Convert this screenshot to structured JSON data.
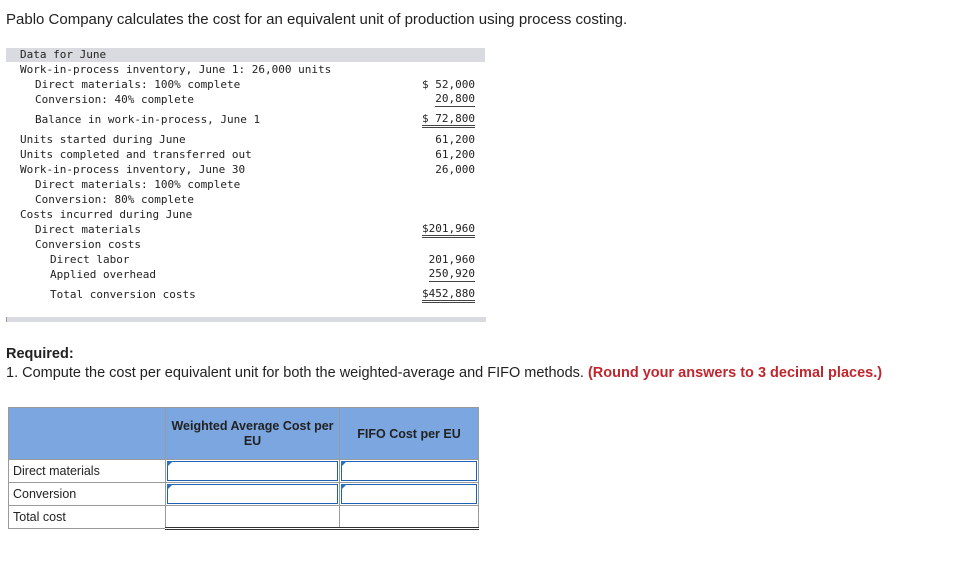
{
  "intro": "Pablo Company calculates the cost for an equivalent unit of production using process costing.",
  "data_table": {
    "header": "Data for June",
    "rows": [
      {
        "label": "Work-in-process inventory, June 1: 26,000 units",
        "value": ""
      },
      {
        "label": "Direct materials: 100% complete",
        "value": "$ 52,000"
      },
      {
        "label": "Conversion: 40% complete",
        "value": "20,800"
      },
      {
        "label": "Balance in work-in-process, June 1",
        "value": "$ 72,800"
      },
      {
        "label": "Units started during June",
        "value": "61,200"
      },
      {
        "label": "Units completed and transferred out",
        "value": "61,200"
      },
      {
        "label": "Work-in-process inventory, June 30",
        "value": "26,000"
      },
      {
        "label": "Direct materials: 100% complete",
        "value": ""
      },
      {
        "label": "Conversion: 80% complete",
        "value": ""
      },
      {
        "label": "Costs incurred during June",
        "value": ""
      },
      {
        "label": "Direct materials",
        "value": "$201,960"
      },
      {
        "label": "Conversion costs",
        "value": ""
      },
      {
        "label": "Direct labor",
        "value": "201,960"
      },
      {
        "label": "Applied overhead",
        "value": "250,920"
      },
      {
        "label": "Total conversion costs",
        "value": "$452,880"
      }
    ]
  },
  "required": {
    "heading": "Required:",
    "instruction": "1. Compute the cost per equivalent unit for both the weighted-average and FIFO methods.",
    "note": "(Round your answers to 3 decimal places.)"
  },
  "answer_table": {
    "col1": "Weighted Average Cost per EU",
    "col2": "FIFO Cost per EU",
    "rows": [
      "Direct materials",
      "Conversion",
      "Total cost"
    ]
  }
}
